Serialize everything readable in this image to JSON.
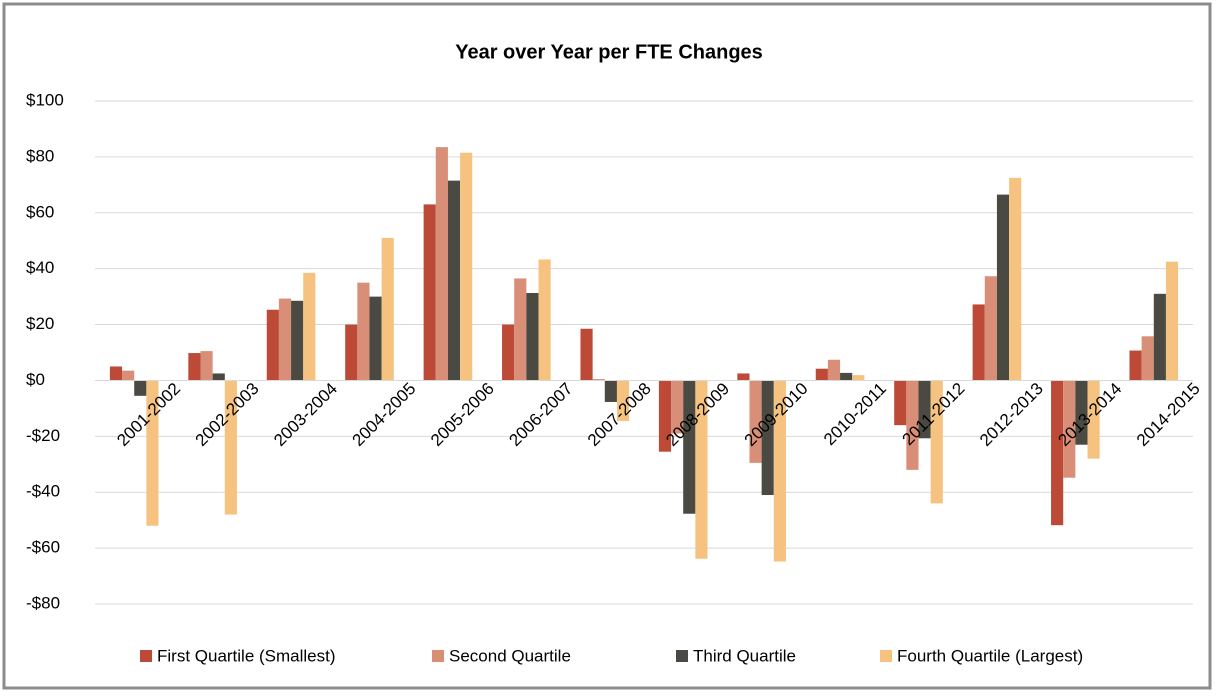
{
  "chart_data": {
    "type": "bar",
    "title": "Year over Year per FTE Changes",
    "categories": [
      "2001-2002",
      "2002-2003",
      "2003-2004",
      "2004-2005",
      "2005-2006",
      "2006-2007",
      "2007-2008",
      "2008-2009",
      "2009-2010",
      "2010-2011",
      "2011-2012",
      "2012-2013",
      "2013-2014",
      "2014-2015"
    ],
    "series": [
      {
        "name": "First Quartile (Smallest)",
        "color": "#bc4a36",
        "values": [
          5,
          9.8,
          25.3,
          20,
          63,
          20,
          18.5,
          -25.5,
          2.5,
          4.2,
          -16,
          27.2,
          -51.8,
          10.7
        ]
      },
      {
        "name": "Second Quartile",
        "color": "#d98e78",
        "values": [
          3.5,
          10.5,
          29.3,
          35,
          83.5,
          36.5,
          0.5,
          -19,
          -29.5,
          7.4,
          -32,
          37.3,
          -34.8,
          15.8
        ]
      },
      {
        "name": "Third Quartile",
        "color": "#4a4a42",
        "values": [
          -5.5,
          2.5,
          28.5,
          30,
          71.5,
          31.3,
          -7.7,
          -47.7,
          -41,
          2.7,
          -20.7,
          66.5,
          -23,
          31
        ]
      },
      {
        "name": "Fourth Quartile (Largest)",
        "color": "#f5c37f",
        "values": [
          -52,
          -48,
          38.5,
          51,
          81.5,
          43.3,
          -14.5,
          -63.8,
          -64.8,
          1.9,
          -44,
          72.5,
          -28,
          42.5
        ]
      }
    ],
    "ylim": [
      -80,
      100
    ],
    "yticks": [
      {
        "value": -80,
        "label": "-$80"
      },
      {
        "value": -60,
        "label": "-$60"
      },
      {
        "value": -40,
        "label": "-$40"
      },
      {
        "value": -20,
        "label": "-$20"
      },
      {
        "value": 0,
        "label": "$0"
      },
      {
        "value": 20,
        "label": "$20"
      },
      {
        "value": 40,
        "label": "$40"
      },
      {
        "value": 60,
        "label": "$60"
      },
      {
        "value": 80,
        "label": "$80"
      },
      {
        "value": 100,
        "label": "$100"
      }
    ],
    "grid": true,
    "legend": "bottom"
  }
}
